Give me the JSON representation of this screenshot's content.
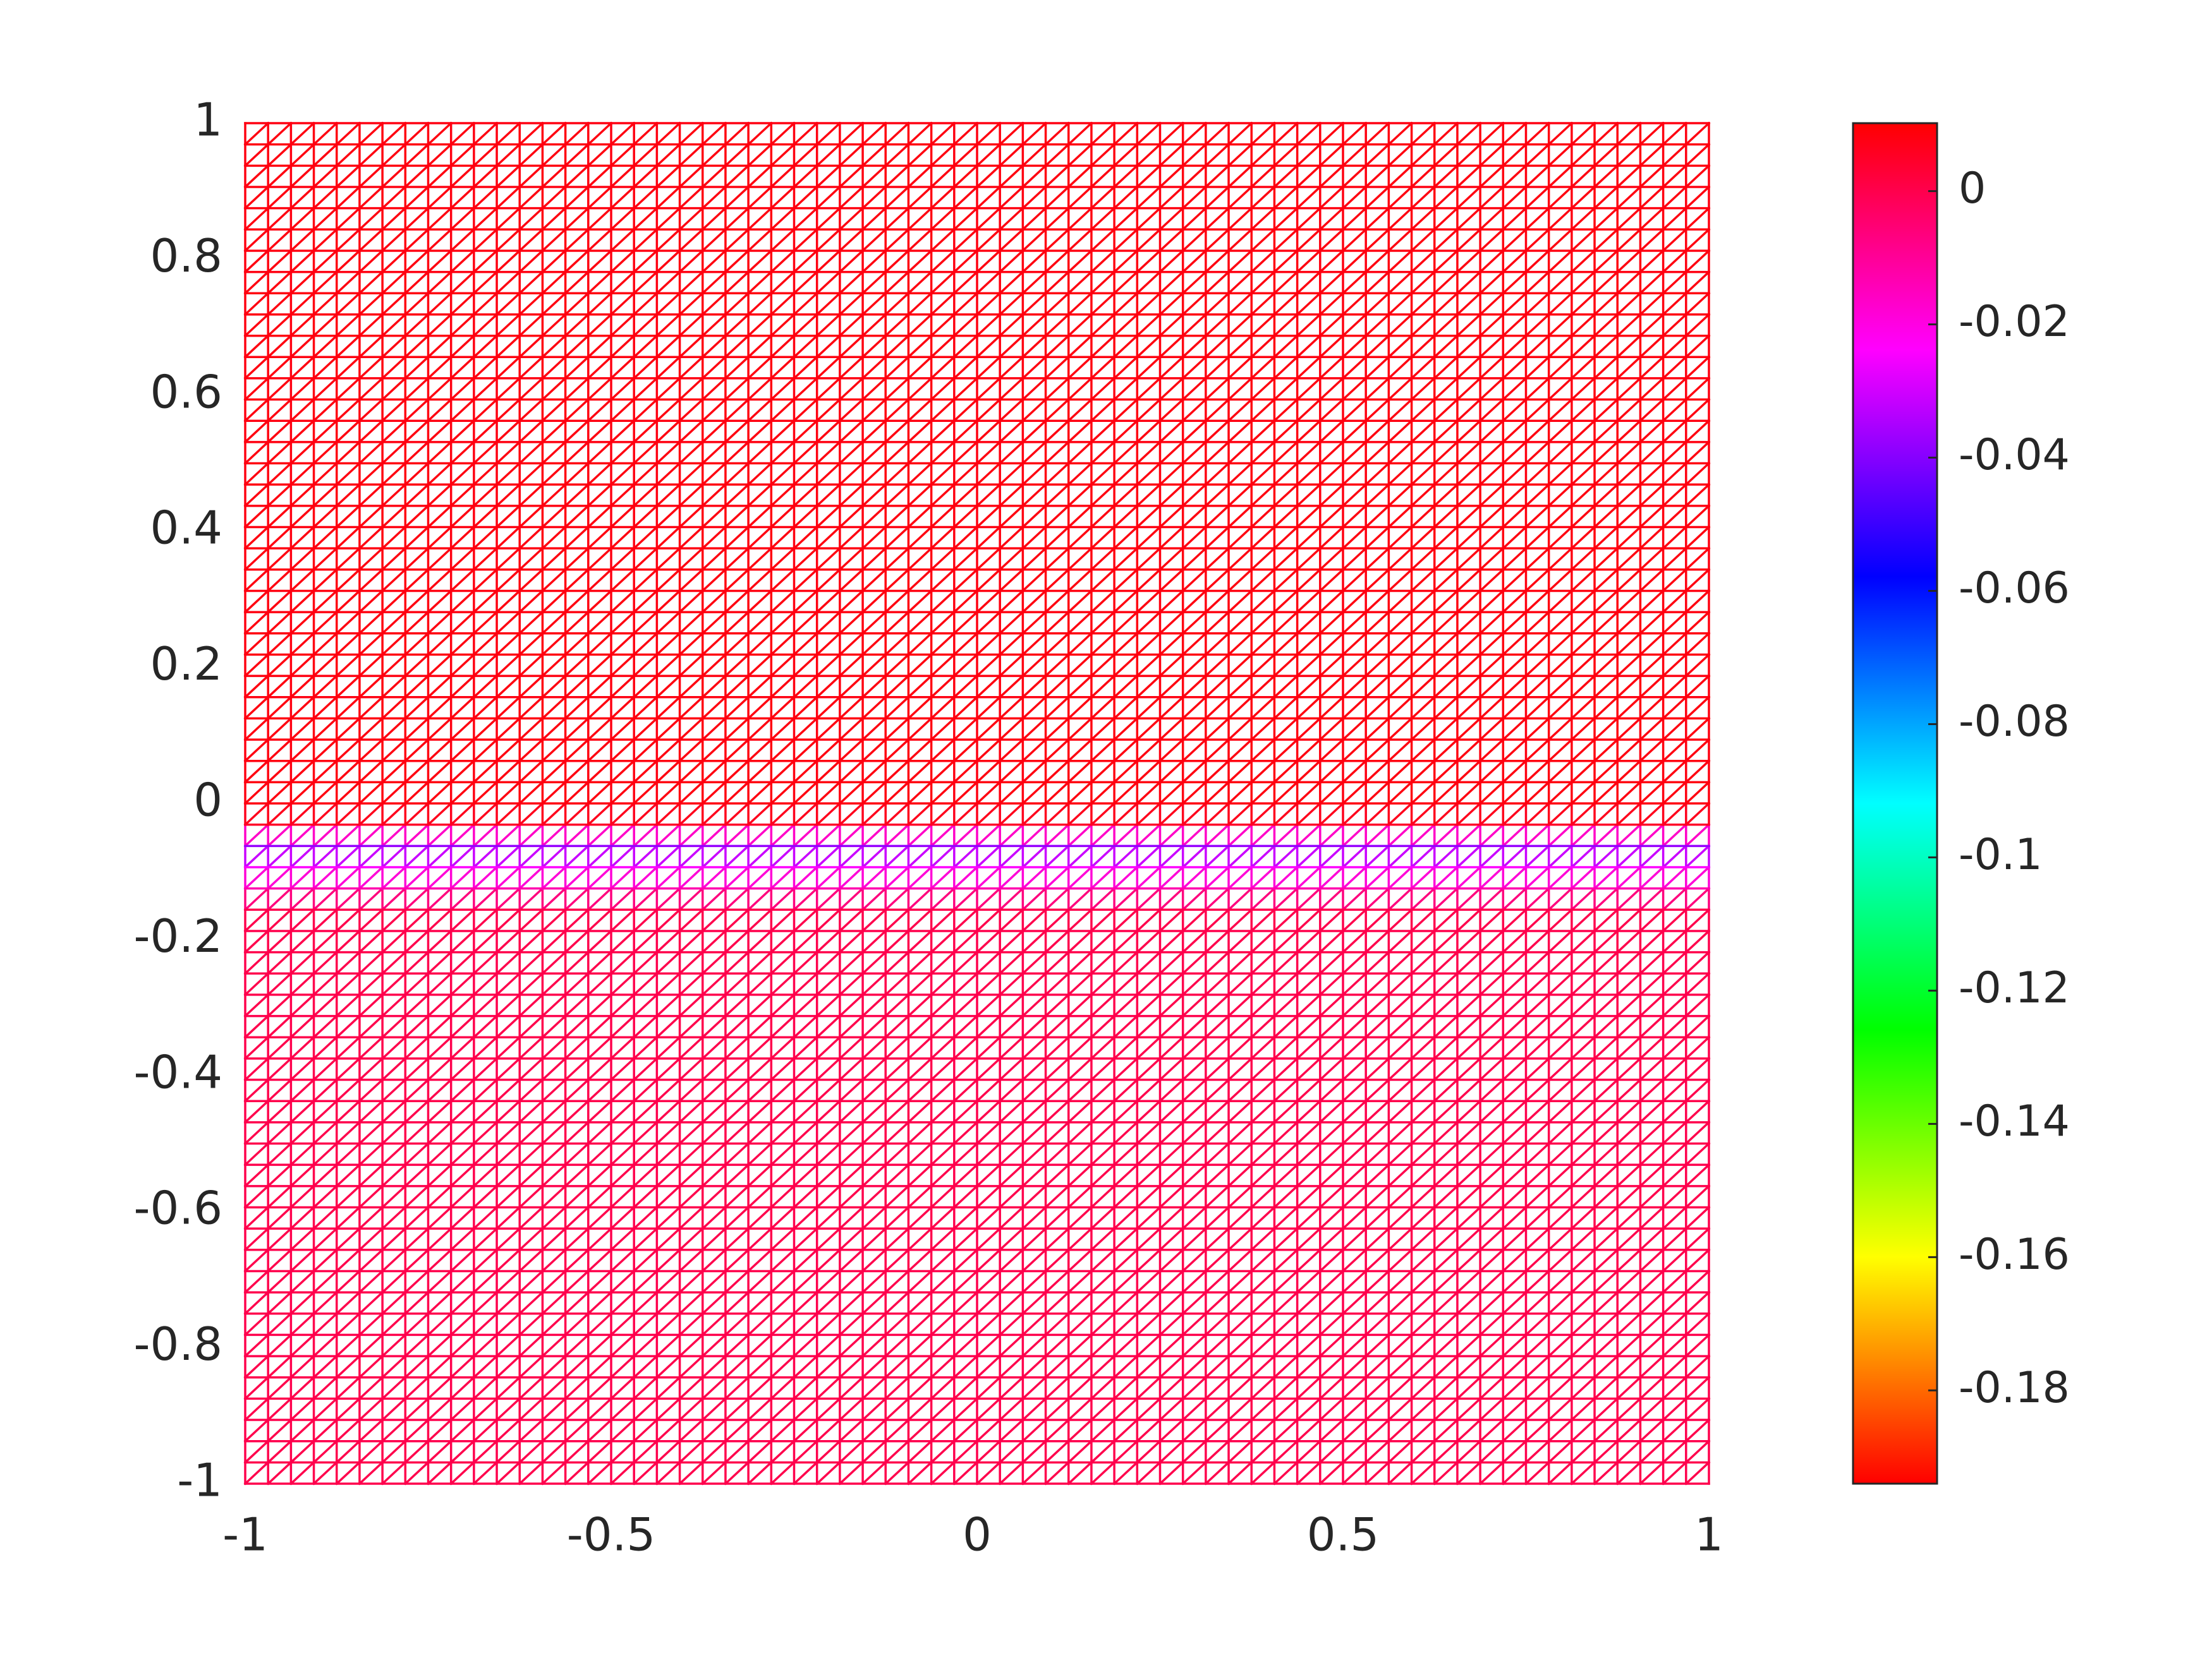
{
  "chart_data": {
    "type": "mesh",
    "x": [
      -1,
      -0.96875,
      -0.9375,
      -0.90625,
      -0.875,
      -0.84375,
      -0.8125,
      -0.78125,
      -0.75,
      -0.71875,
      -0.6875,
      -0.65625,
      -0.625,
      -0.59375,
      -0.5625,
      -0.53125,
      -0.5,
      -0.46875,
      -0.4375,
      -0.40625,
      -0.375,
      -0.34375,
      -0.3125,
      -0.28125,
      -0.25,
      -0.21875,
      -0.1875,
      -0.15625,
      -0.125,
      -0.09375,
      -0.0625,
      -0.03125,
      0,
      0.03125,
      0.0625,
      0.09375,
      0.125,
      0.15625,
      0.1875,
      0.21875,
      0.25,
      0.28125,
      0.3125,
      0.34375,
      0.375,
      0.40625,
      0.4375,
      0.46875,
      0.5,
      0.53125,
      0.5625,
      0.59375,
      0.625,
      0.65625,
      0.6875,
      0.71875,
      0.75,
      0.78125,
      0.8125,
      0.84375,
      0.875,
      0.90625,
      0.9375,
      0.96875,
      1
    ],
    "y": [
      -1,
      -0.96875,
      -0.9375,
      -0.90625,
      -0.875,
      -0.84375,
      -0.8125,
      -0.78125,
      -0.75,
      -0.71875,
      -0.6875,
      -0.65625,
      -0.625,
      -0.59375,
      -0.5625,
      -0.53125,
      -0.5,
      -0.46875,
      -0.4375,
      -0.40625,
      -0.375,
      -0.34375,
      -0.3125,
      -0.28125,
      -0.25,
      -0.21875,
      -0.1875,
      -0.15625,
      -0.125,
      -0.09375,
      -0.0625,
      -0.03125,
      0,
      0.03125,
      0.0625,
      0.09375,
      0.125,
      0.15625,
      0.1875,
      0.21875,
      0.25,
      0.28125,
      0.3125,
      0.34375,
      0.375,
      0.40625,
      0.4375,
      0.46875,
      0.5,
      0.53125,
      0.5625,
      0.59375,
      0.625,
      0.65625,
      0.6875,
      0.71875,
      0.75,
      0.78125,
      0.8125,
      0.84375,
      0.875,
      0.90625,
      0.9375,
      0.96875,
      1
    ],
    "values": [
      0,
      0,
      0,
      0,
      0,
      0,
      0,
      0,
      0,
      0,
      0,
      0,
      0,
      0,
      0,
      0,
      0,
      0,
      0,
      0,
      0,
      0,
      0,
      0,
      0,
      0,
      0,
      0,
      -0.013,
      -0.024,
      -0.038,
      0.005,
      0.008,
      0.008,
      0.008,
      0.008,
      0.008,
      0.008,
      0.008,
      0.008,
      0.008,
      0.008,
      0.008,
      0.008,
      0.008,
      0.008,
      0.008,
      0.008,
      0.008,
      0.008,
      0.008,
      0.008,
      0.008,
      0.008,
      0.008,
      0.008,
      0.008,
      0.008,
      0.008,
      0.008,
      0.008,
      0.008,
      0.008,
      0.008,
      0.008
    ],
    "xlim": [
      -1,
      1
    ],
    "ylim": [
      -1,
      1
    ],
    "xticks": [
      -1,
      -0.5,
      0,
      0.5,
      1
    ],
    "yticks": [
      -1,
      -0.8,
      -0.6,
      -0.4,
      -0.2,
      0,
      0.2,
      0.4,
      0.6,
      0.8,
      1
    ],
    "colormap": "hsv",
    "clim": [
      -0.194,
      0.0102
    ],
    "cticks": [
      -0.18,
      -0.16,
      -0.14,
      -0.12,
      -0.1,
      -0.08,
      -0.06,
      -0.04,
      -0.02,
      0
    ]
  }
}
